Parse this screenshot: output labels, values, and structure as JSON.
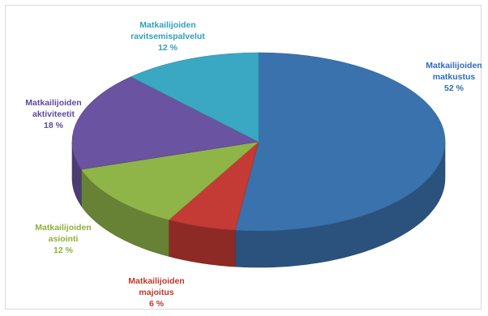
{
  "chart_data": {
    "type": "pie",
    "title": "",
    "slices": [
      {
        "name": "matkustus",
        "label_lines": [
          "Matkailijoiden",
          "matkustus"
        ],
        "value": 52,
        "value_label": "52 %",
        "color": "#3a72ad",
        "label_color": "#2f6fb6"
      },
      {
        "name": "majoitus",
        "label_lines": [
          "Matkailijoiden",
          "majoitus"
        ],
        "value": 6,
        "value_label": "6 %",
        "color": "#c43a34",
        "label_color": "#c0392b"
      },
      {
        "name": "asiointi",
        "label_lines": [
          "Matkailijoiden",
          "asiointi"
        ],
        "value": 12,
        "value_label": "12 %",
        "color": "#8fb548",
        "label_color": "#8db03b"
      },
      {
        "name": "aktiviteetit",
        "label_lines": [
          "Matkailijoiden",
          "aktiviteetit"
        ],
        "value": 18,
        "value_label": "18 %",
        "color": "#6a53a0",
        "label_color": "#5e4a9c"
      },
      {
        "name": "ravitsemispalvelut",
        "label_lines": [
          "Matkailijoiden",
          "ravitsemispalvelut"
        ],
        "value": 12,
        "value_label": "12 %",
        "color": "#3aa8c2",
        "label_color": "#2e9fbd"
      }
    ],
    "start_angle_deg": 0,
    "direction": "clockwise",
    "style": "3d-pie",
    "legend": "none"
  }
}
